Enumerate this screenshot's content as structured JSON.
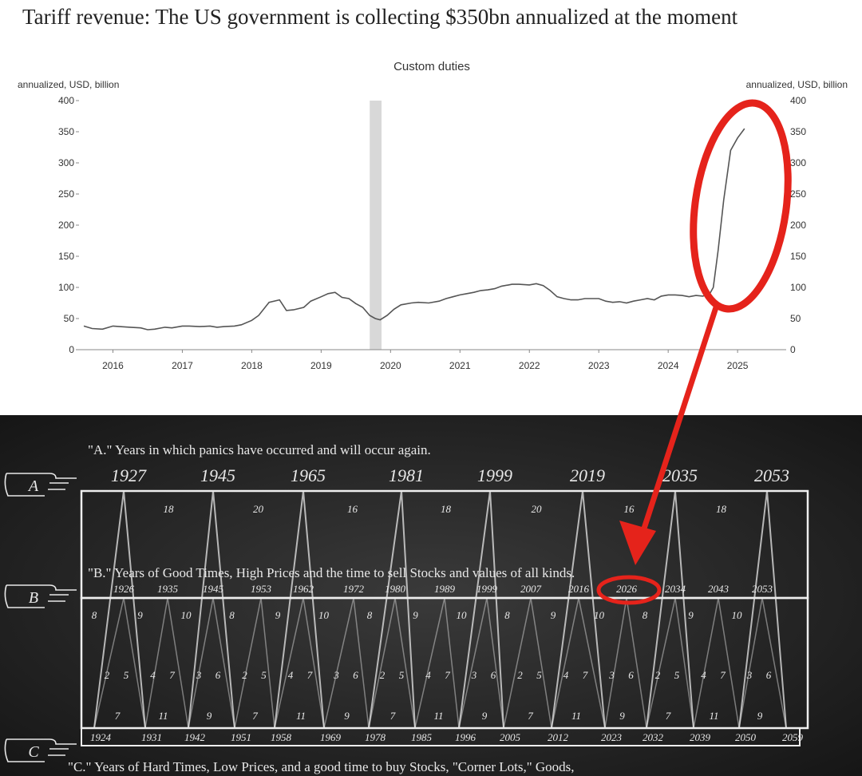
{
  "headline": "Tariff revenue: The US government is collecting $350bn annualized at the moment",
  "chart_data": [
    {
      "type": "line",
      "title": "Custom duties",
      "ylabel_left": "annualized, USD, billion",
      "ylabel_right": "annualized, USD, billion",
      "ylim": [
        0,
        400
      ],
      "yticks": [
        "0",
        "50",
        "100",
        "150",
        "200",
        "250",
        "300",
        "350",
        "400"
      ],
      "xlim": [
        2015.5,
        2025.7
      ],
      "xticks": [
        "2016",
        "2017",
        "2018",
        "2019",
        "2020",
        "2021",
        "2022",
        "2023",
        "2024",
        "2025"
      ],
      "recession_shading": [
        2019.7,
        2019.87
      ],
      "line_color": "#555555",
      "series": [
        {
          "x": [
            2015.58,
            2015.7,
            2015.85,
            2016.0,
            2016.1,
            2016.25,
            2016.4,
            2016.5,
            2016.6,
            2016.75,
            2016.85,
            2017.0,
            2017.1,
            2017.25,
            2017.4,
            2017.5,
            2017.6,
            2017.75,
            2017.85,
            2018.0,
            2018.1,
            2018.25,
            2018.4,
            2018.5,
            2018.6,
            2018.75,
            2018.85,
            2019.0,
            2019.1,
            2019.2,
            2019.3,
            2019.4,
            2019.5,
            2019.6,
            2019.7,
            2019.78,
            2019.85,
            2019.95,
            2020.05,
            2020.15,
            2020.3,
            2020.4,
            2020.55,
            2020.7,
            2020.8,
            2020.9,
            2021.0,
            2021.1,
            2021.2,
            2021.3,
            2021.4,
            2021.5,
            2021.6,
            2021.7,
            2021.75,
            2021.85,
            2022.0,
            2022.1,
            2022.2,
            2022.3,
            2022.4,
            2022.5,
            2022.6,
            2022.7,
            2022.8,
            2023.0,
            2023.1,
            2023.2,
            2023.3,
            2023.4,
            2023.5,
            2023.6,
            2023.7,
            2023.8,
            2023.9,
            2024.0,
            2024.1,
            2024.2,
            2024.3,
            2024.4,
            2024.5,
            2024.6,
            2024.65,
            2024.72,
            2024.8,
            2024.9,
            2025.0,
            2025.1
          ],
          "y": [
            38,
            34,
            33,
            38,
            37,
            36,
            35,
            32,
            33,
            36,
            35,
            38,
            38,
            37,
            38,
            36,
            37,
            38,
            40,
            47,
            55,
            76,
            80,
            63,
            64,
            68,
            78,
            85,
            90,
            92,
            84,
            82,
            74,
            68,
            55,
            50,
            48,
            55,
            65,
            72,
            75,
            76,
            75,
            78,
            82,
            85,
            88,
            90,
            92,
            95,
            96,
            98,
            102,
            104,
            105,
            105,
            104,
            106,
            103,
            95,
            85,
            82,
            80,
            80,
            82,
            82,
            78,
            76,
            77,
            75,
            78,
            80,
            82,
            80,
            86,
            88,
            88,
            87,
            85,
            87,
            86,
            90,
            100,
            160,
            240,
            320,
            340,
            355
          ]
        }
      ]
    },
    {
      "type": "table",
      "row_a_caption": "\"A.\" Years in which panics have occurred and will occur again.",
      "row_a_years": [
        "1927",
        "1945",
        "1965",
        "1981",
        "1999",
        "2019",
        "2035",
        "2053"
      ],
      "row_a_gaps": [
        "18",
        "20",
        "16",
        "18",
        "20",
        "16",
        "18"
      ],
      "row_b_caption": "\"B.\" Years of Good Times, High Prices and the time to sell Stocks and values of all kinds.",
      "row_b_years": [
        "1926",
        "1935",
        "1945",
        "1953",
        "1962",
        "1972",
        "1980",
        "1989",
        "1999",
        "2007",
        "2016",
        "2026",
        "2034",
        "2043",
        "2053"
      ],
      "inner_upper": [
        "8",
        "9",
        "10",
        "8",
        "9",
        "10",
        "8",
        "9",
        "10",
        "8",
        "9",
        "10",
        "8",
        "9",
        "10"
      ],
      "inner_mid": [
        "2",
        "5",
        "4",
        "7",
        "3",
        "6",
        "2",
        "5",
        "4",
        "7",
        "3",
        "6",
        "2",
        "5",
        "4",
        "7",
        "3",
        "6",
        "2",
        "5",
        "4",
        "7",
        "3",
        "6",
        "2",
        "5",
        "4",
        "7",
        "3",
        "6"
      ],
      "inner_lower": [
        "7",
        "11",
        "9",
        "7",
        "11",
        "9",
        "7",
        "11",
        "9",
        "7",
        "11",
        "9",
        "7",
        "11",
        "9"
      ],
      "row_c_years": [
        "1924",
        "1931",
        "1942",
        "1951",
        "1958",
        "1969",
        "1978",
        "1985",
        "1996",
        "2005",
        "2012",
        "2023",
        "2032",
        "2039",
        "2050",
        "2059"
      ],
      "row_c_caption": "\"C.\"  Years of Hard Times, Low Prices, and a good time to buy Stocks, \"Corner Lots,\" Goods,",
      "row_markers": [
        "A",
        "B",
        "C"
      ]
    }
  ],
  "colors": {
    "annotation": "#e5231b",
    "chart_line": "#555555",
    "chalkboard": "#222222",
    "chalk": "#e8e8e8"
  }
}
